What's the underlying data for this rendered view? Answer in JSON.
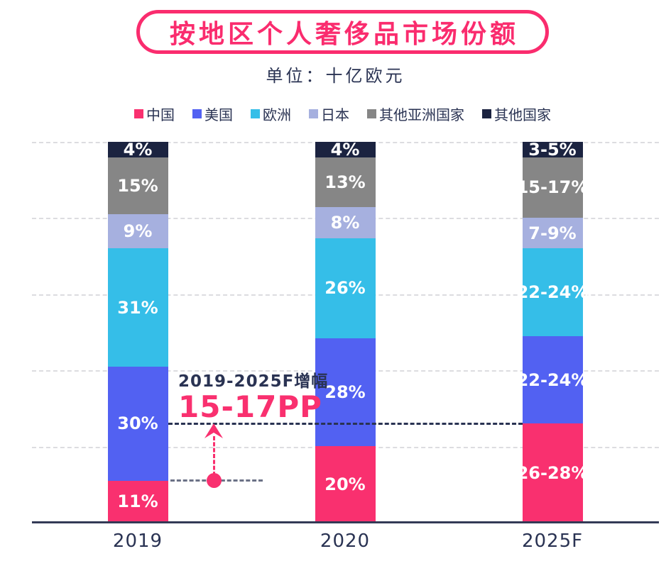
{
  "title": "按地区个人奢侈品市场份额",
  "subtitle": "单位：十亿欧元",
  "annotation": {
    "heading": "2019-2025F增幅",
    "value": "15-17PP"
  },
  "colors": {
    "pink": "#F9306F",
    "blue": "#5261F2",
    "cyan": "#35BEE8",
    "lavender": "#A6B0DF",
    "gray": "#868686",
    "navy": "#1B2340",
    "text": "#2A3353",
    "gridline": "#DCDCE0",
    "axis": "#333A56"
  },
  "chart_data": {
    "type": "bar",
    "subtype": "stacked-100",
    "categories": [
      "2019",
      "2020",
      "2025F"
    ],
    "series": [
      {
        "name": "中国",
        "color": "#F9306F",
        "values": [
          11,
          20,
          26
        ],
        "labels": [
          "11%",
          "20%",
          "26-28%"
        ]
      },
      {
        "name": "美国",
        "color": "#5261F2",
        "values": [
          30,
          28,
          23
        ],
        "labels": [
          "30%",
          "28%",
          "22-24%"
        ]
      },
      {
        "name": "欧洲",
        "color": "#35BEE8",
        "values": [
          31,
          26,
          23
        ],
        "labels": [
          "31%",
          "26%",
          "22-24%"
        ]
      },
      {
        "name": "日本",
        "color": "#A6B0DF",
        "values": [
          9,
          8,
          8
        ],
        "labels": [
          "9%",
          "8%",
          "7-9%"
        ]
      },
      {
        "name": "其他亚洲国家",
        "color": "#868686",
        "values": [
          15,
          13,
          16
        ],
        "labels": [
          "15%",
          "13%",
          "15-17%"
        ]
      },
      {
        "name": "其他国家",
        "color": "#1B2340",
        "values": [
          4,
          4,
          4
        ],
        "labels": [
          "4%",
          "4%",
          "3-5%"
        ]
      }
    ],
    "title": "按地区个人奢侈品市场份额",
    "unit_label": "单位：十亿欧元",
    "xlabel": "",
    "ylabel": "",
    "ylim": [
      0,
      100
    ],
    "grid": "horizontal-dashed",
    "legend_position": "top",
    "annotations": [
      {
        "text": "2019-2025F增幅 15-17PP",
        "refers_to": "中国 share growth from 11% (2019) to 26-28% (2025F)"
      }
    ]
  }
}
